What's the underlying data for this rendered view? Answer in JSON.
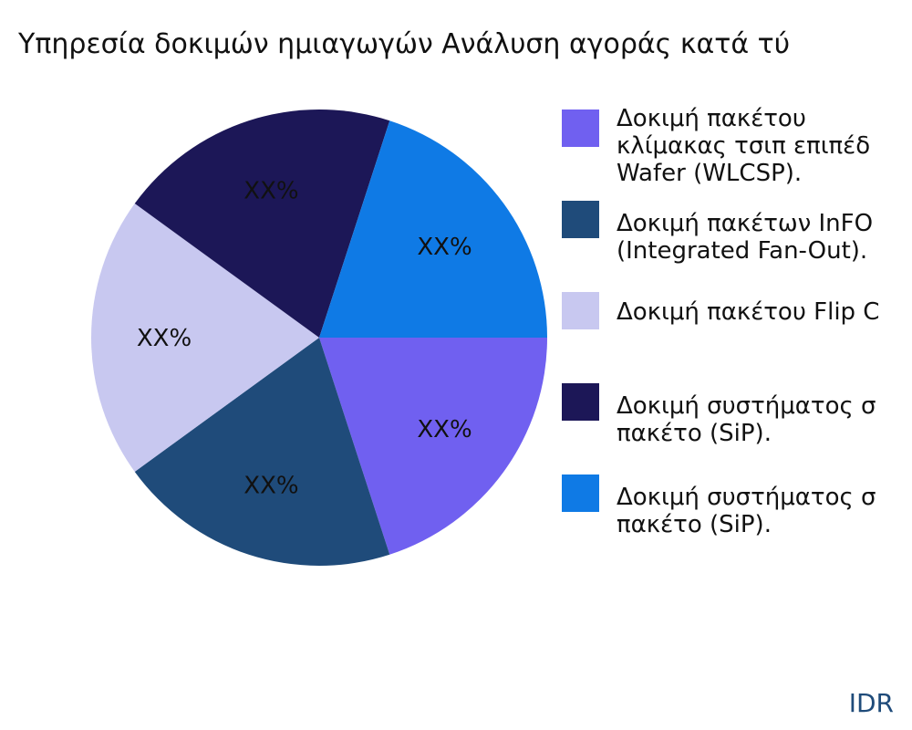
{
  "chart_data": {
    "type": "pie",
    "title": "Υπηρεσία δοκιμών ημιαγωγών Ανάλυση αγοράς κατά τύ",
    "categories": [
      "Δοκιμή πακέτου\nκλίμακας τσιπ επιπέδ\nWafer (WLCSP).",
      "Δοκιμή πακέτων InFO\n(Integrated Fan-Out).",
      "Δοκιμή πακέτου Flip C",
      "Δοκιμή συστήματος σ\nπακέτο (SiP).",
      "Δοκιμή συστήματος σ\nπακέτο (SiP)."
    ],
    "values": [
      20,
      20,
      20,
      20,
      20
    ],
    "value_labels": [
      "XX%",
      "XX%",
      "XX%",
      "XX%",
      "XX%"
    ],
    "colors": [
      "#7060f0",
      "#1f4b7a",
      "#c8c8f0",
      "#1c1757",
      "#0f7ae5"
    ],
    "source": "IDR"
  }
}
